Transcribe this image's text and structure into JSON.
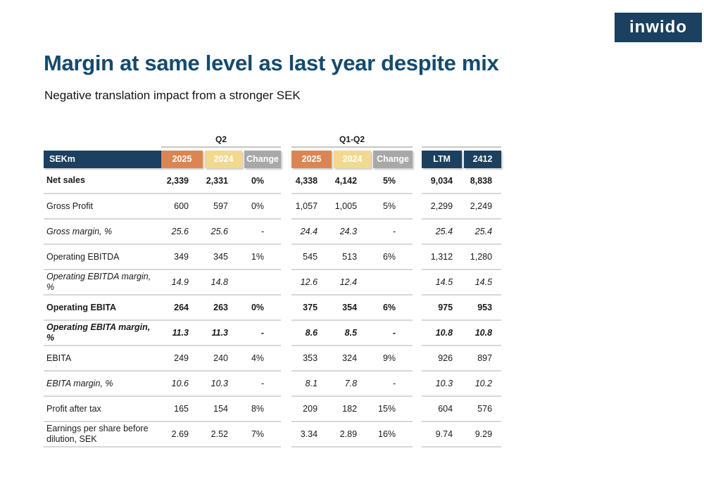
{
  "logo": {
    "text": "inwido"
  },
  "header": {
    "title": "Margin at same level as last year despite mix",
    "subtitle": "Negative translation impact from a stronger SEK"
  },
  "colors": {
    "navy": "#1B4060",
    "title_navy": "#154A6E",
    "orange": "#DB8652",
    "tan": "#F2D98E",
    "header_gray": "#A8A8A8",
    "separator_gray": "#D8D8D8"
  },
  "table": {
    "corner_label": "SEKm",
    "groups": [
      {
        "label": "Q2",
        "columns": [
          "2025",
          "2024",
          "Change"
        ]
      },
      {
        "label": "Q1-Q2",
        "columns": [
          "2025",
          "2024",
          "Change"
        ]
      },
      {
        "label": "",
        "columns": [
          "LTM",
          "2412"
        ]
      }
    ],
    "rows": [
      {
        "label": "Net sales",
        "style": "bold",
        "values": [
          "2,339",
          "2,331",
          "0%",
          "4,338",
          "4,142",
          "5%",
          "9,034",
          "8,838"
        ]
      },
      {
        "label": "Gross Profit",
        "style": "regular",
        "values": [
          "600",
          "597",
          "0%",
          "1,057",
          "1,005",
          "5%",
          "2,299",
          "2,249"
        ]
      },
      {
        "label": "Gross margin, %",
        "style": "italic",
        "values": [
          "25.6",
          "25.6",
          "-",
          "24.4",
          "24.3",
          "-",
          "25.4",
          "25.4"
        ]
      },
      {
        "label": "Operating EBITDA",
        "style": "regular",
        "values": [
          "349",
          "345",
          "1%",
          "545",
          "513",
          "6%",
          "1,312",
          "1,280"
        ]
      },
      {
        "label": "Operating EBITDA margin, %",
        "style": "italic",
        "values": [
          "14.9",
          "14.8",
          "",
          "12.6",
          "12.4",
          "",
          "14.5",
          "14.5"
        ]
      },
      {
        "label": "Operating EBITA",
        "style": "bold",
        "values": [
          "264",
          "263",
          "0%",
          "375",
          "354",
          "6%",
          "975",
          "953"
        ]
      },
      {
        "label": "Operating EBITA margin, %",
        "style": "bold-italic",
        "values": [
          "11.3",
          "11.3",
          "-",
          "8.6",
          "8.5",
          "-",
          "10.8",
          "10.8"
        ]
      },
      {
        "label": "EBITA",
        "style": "regular",
        "values": [
          "249",
          "240",
          "4%",
          "353",
          "324",
          "9%",
          "926",
          "897"
        ]
      },
      {
        "label": "EBITA margin, %",
        "style": "italic",
        "values": [
          "10.6",
          "10.3",
          "-",
          "8.1",
          "7.8",
          "-",
          "10.3",
          "10.2"
        ]
      },
      {
        "label": "Profit after tax",
        "style": "regular",
        "values": [
          "165",
          "154",
          "8%",
          "209",
          "182",
          "15%",
          "604",
          "576"
        ]
      },
      {
        "label": "Earnings per share before dilution, SEK",
        "style": "regular",
        "values": [
          "2.69",
          "2.52",
          "7%",
          "3.34",
          "2.89",
          "16%",
          "9.74",
          "9.29"
        ]
      }
    ]
  }
}
